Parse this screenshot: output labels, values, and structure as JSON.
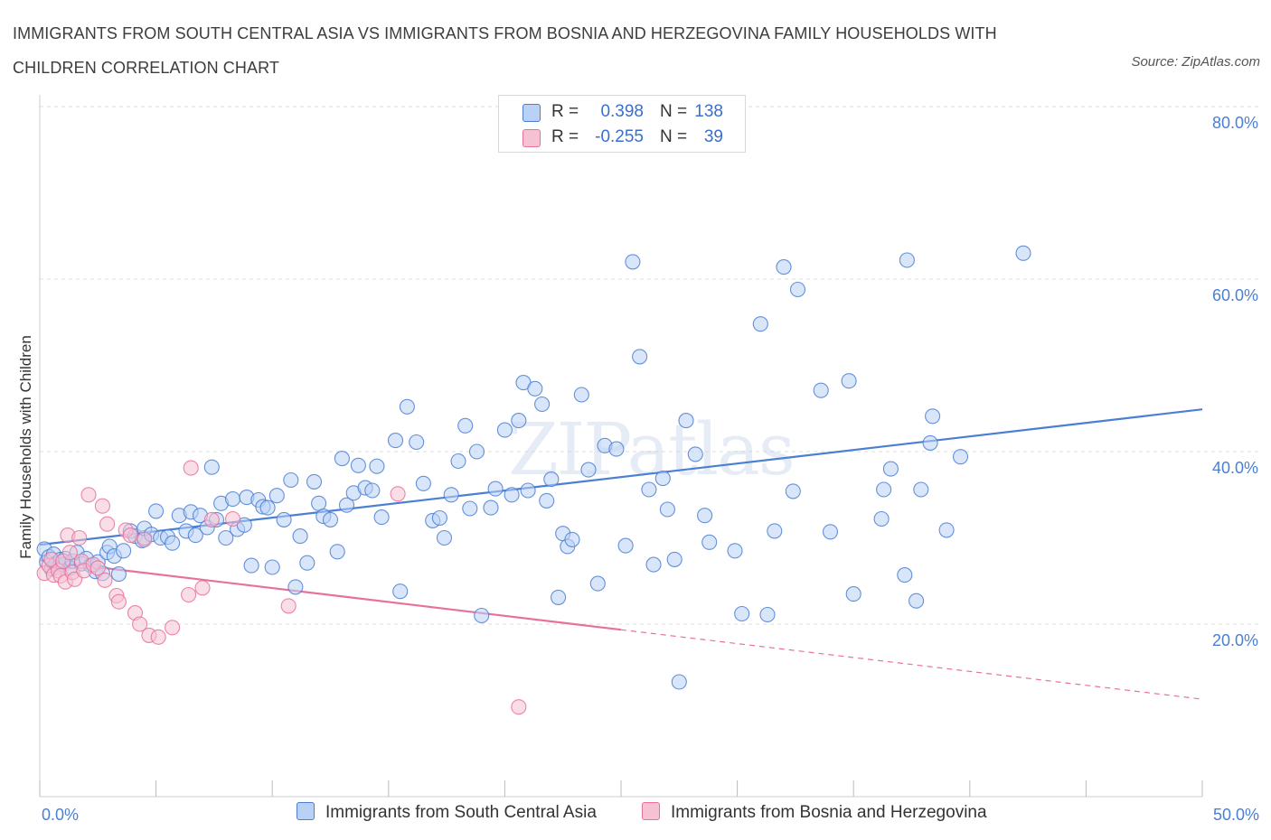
{
  "title": "IMMIGRANTS FROM SOUTH CENTRAL ASIA VS IMMIGRANTS FROM BOSNIA AND HERZEGOVINA FAMILY HOUSEHOLDS WITH CHILDREN CORRELATION CHART",
  "source": "Source: ZipAtlas.com",
  "watermark": "ZIPatlas",
  "colors": {
    "blue": "#4a7fd4",
    "blue_fill": "#b9d1f5",
    "pink": "#e8719b",
    "pink_fill": "#f6c2d3",
    "grid": "#dddddd"
  },
  "legend": {
    "series1": {
      "r_label": "R =",
      "r_value": "0.398",
      "n_label": "N =",
      "n_value": "138"
    },
    "series2": {
      "r_label": "R =",
      "r_value": "-0.255",
      "n_label": "N =",
      "n_value": "39"
    }
  },
  "chart_data": {
    "type": "scatter",
    "title": "Immigrants from South Central Asia vs Immigrants from Bosnia and Herzegovina Family Households with Children Correlation Chart",
    "xlabel": "",
    "ylabel": "Family Households with Children",
    "xlim": [
      0,
      50
    ],
    "ylim": [
      0,
      82
    ],
    "x_tick_labels": [
      "0.0%",
      "50.0%"
    ],
    "y_ticks": [
      20,
      40,
      60,
      80
    ],
    "y_tick_labels": [
      "20.0%",
      "40.0%",
      "60.0%",
      "80.0%"
    ],
    "grid": true,
    "series": [
      {
        "name": "Immigrants from South Central Asia",
        "color": "#4a7fd4",
        "trend": {
          "x": [
            0,
            50
          ],
          "y": [
            29.2,
            44.9
          ],
          "dashed_from": null
        },
        "points": [
          [
            0.2,
            28.7
          ],
          [
            0.3,
            27.2
          ],
          [
            0.4,
            27.8
          ],
          [
            0.5,
            26.4
          ],
          [
            0.6,
            28.1
          ],
          [
            0.7,
            27.0
          ],
          [
            0.8,
            26.6
          ],
          [
            0.9,
            27.5
          ],
          [
            1.0,
            26.9
          ],
          [
            1.1,
            27.6
          ],
          [
            1.3,
            26.5
          ],
          [
            1.4,
            27.3
          ],
          [
            1.6,
            28.3
          ],
          [
            1.8,
            27.0
          ],
          [
            2.0,
            27.6
          ],
          [
            2.2,
            26.8
          ],
          [
            2.4,
            26.1
          ],
          [
            2.5,
            27.2
          ],
          [
            2.7,
            25.9
          ],
          [
            2.9,
            28.3
          ],
          [
            3.0,
            29.0
          ],
          [
            3.2,
            27.9
          ],
          [
            3.4,
            25.8
          ],
          [
            3.6,
            28.5
          ],
          [
            3.9,
            30.8
          ],
          [
            4.1,
            30.2
          ],
          [
            4.4,
            29.7
          ],
          [
            4.5,
            30.0
          ],
          [
            4.5,
            31.1
          ],
          [
            4.8,
            30.4
          ],
          [
            5.0,
            33.1
          ],
          [
            5.2,
            30.0
          ],
          [
            5.5,
            30.1
          ],
          [
            5.7,
            29.4
          ],
          [
            6.0,
            32.6
          ],
          [
            6.3,
            30.8
          ],
          [
            6.5,
            33.0
          ],
          [
            6.7,
            30.3
          ],
          [
            6.9,
            32.6
          ],
          [
            7.2,
            31.2
          ],
          [
            7.4,
            38.2
          ],
          [
            7.6,
            32.1
          ],
          [
            7.8,
            34.0
          ],
          [
            8.0,
            30.0
          ],
          [
            8.3,
            34.5
          ],
          [
            8.5,
            31.0
          ],
          [
            8.8,
            31.5
          ],
          [
            8.9,
            34.7
          ],
          [
            9.1,
            26.8
          ],
          [
            9.4,
            34.4
          ],
          [
            9.6,
            33.6
          ],
          [
            9.8,
            33.5
          ],
          [
            10.0,
            26.6
          ],
          [
            10.2,
            34.9
          ],
          [
            10.5,
            32.1
          ],
          [
            10.8,
            36.7
          ],
          [
            11.0,
            24.3
          ],
          [
            11.2,
            30.2
          ],
          [
            11.5,
            27.1
          ],
          [
            11.8,
            36.5
          ],
          [
            12.0,
            34.0
          ],
          [
            12.2,
            32.5
          ],
          [
            12.5,
            32.1
          ],
          [
            12.8,
            28.4
          ],
          [
            13.0,
            39.2
          ],
          [
            13.2,
            33.8
          ],
          [
            13.5,
            35.2
          ],
          [
            13.7,
            38.4
          ],
          [
            14.0,
            35.8
          ],
          [
            14.3,
            35.5
          ],
          [
            14.5,
            38.3
          ],
          [
            14.7,
            32.4
          ],
          [
            15.3,
            41.3
          ],
          [
            15.5,
            23.8
          ],
          [
            15.8,
            45.2
          ],
          [
            16.2,
            41.1
          ],
          [
            16.5,
            36.3
          ],
          [
            16.9,
            32.0
          ],
          [
            17.2,
            32.3
          ],
          [
            17.4,
            30.0
          ],
          [
            17.7,
            35.0
          ],
          [
            18.0,
            38.9
          ],
          [
            18.3,
            43.0
          ],
          [
            18.5,
            33.4
          ],
          [
            18.8,
            40.0
          ],
          [
            19.0,
            21.0
          ],
          [
            19.4,
            33.5
          ],
          [
            19.6,
            35.7
          ],
          [
            20.0,
            42.5
          ],
          [
            20.3,
            35.0
          ],
          [
            20.6,
            43.6
          ],
          [
            20.8,
            48.0
          ],
          [
            21.0,
            35.5
          ],
          [
            21.3,
            47.3
          ],
          [
            21.6,
            45.5
          ],
          [
            21.8,
            34.3
          ],
          [
            22.0,
            36.8
          ],
          [
            22.3,
            23.1
          ],
          [
            22.5,
            30.5
          ],
          [
            22.7,
            29.0
          ],
          [
            22.9,
            29.8
          ],
          [
            23.3,
            46.6
          ],
          [
            23.6,
            37.9
          ],
          [
            24.0,
            24.7
          ],
          [
            24.3,
            40.7
          ],
          [
            24.8,
            40.3
          ],
          [
            25.2,
            29.1
          ],
          [
            25.5,
            62.0
          ],
          [
            25.8,
            51.0
          ],
          [
            26.2,
            35.6
          ],
          [
            26.4,
            26.9
          ],
          [
            26.8,
            36.9
          ],
          [
            27.0,
            33.3
          ],
          [
            27.3,
            27.5
          ],
          [
            27.5,
            13.3
          ],
          [
            27.8,
            43.6
          ],
          [
            28.2,
            39.7
          ],
          [
            28.6,
            32.6
          ],
          [
            28.8,
            29.5
          ],
          [
            29.9,
            28.5
          ],
          [
            30.2,
            21.2
          ],
          [
            31.0,
            54.8
          ],
          [
            31.3,
            21.1
          ],
          [
            31.6,
            30.8
          ],
          [
            32.0,
            61.4
          ],
          [
            32.4,
            35.4
          ],
          [
            32.6,
            58.8
          ],
          [
            33.6,
            47.1
          ],
          [
            34.0,
            30.7
          ],
          [
            34.8,
            48.2
          ],
          [
            35.0,
            23.5
          ],
          [
            36.2,
            32.2
          ],
          [
            36.3,
            35.6
          ],
          [
            36.6,
            38.0
          ],
          [
            37.2,
            25.7
          ],
          [
            37.3,
            62.2
          ],
          [
            37.7,
            22.7
          ],
          [
            37.9,
            35.6
          ],
          [
            38.3,
            41.0
          ],
          [
            38.4,
            44.1
          ],
          [
            39.0,
            30.9
          ],
          [
            39.6,
            39.4
          ],
          [
            42.3,
            63.0
          ]
        ]
      },
      {
        "name": "Immigrants from Bosnia and Herzegovina",
        "color": "#e8719b",
        "trend": {
          "x": [
            0,
            50
          ],
          "y": [
            27.4,
            11.3
          ],
          "dashed_from": 25
        },
        "points": [
          [
            0.2,
            25.9
          ],
          [
            0.4,
            26.8
          ],
          [
            0.5,
            27.5
          ],
          [
            0.6,
            25.7
          ],
          [
            0.8,
            26.2
          ],
          [
            0.9,
            25.6
          ],
          [
            1.0,
            27.3
          ],
          [
            1.1,
            24.9
          ],
          [
            1.2,
            30.3
          ],
          [
            1.3,
            28.3
          ],
          [
            1.4,
            26.0
          ],
          [
            1.5,
            25.2
          ],
          [
            1.7,
            30.0
          ],
          [
            1.8,
            27.3
          ],
          [
            1.9,
            26.2
          ],
          [
            2.1,
            35.0
          ],
          [
            2.3,
            26.9
          ],
          [
            2.5,
            26.5
          ],
          [
            2.7,
            33.7
          ],
          [
            2.8,
            25.1
          ],
          [
            2.9,
            31.6
          ],
          [
            3.3,
            23.3
          ],
          [
            3.4,
            22.6
          ],
          [
            3.7,
            30.9
          ],
          [
            3.9,
            30.3
          ],
          [
            4.1,
            21.3
          ],
          [
            4.3,
            20.0
          ],
          [
            4.5,
            29.8
          ],
          [
            4.7,
            18.7
          ],
          [
            5.1,
            18.5
          ],
          [
            5.7,
            19.6
          ],
          [
            6.4,
            23.4
          ],
          [
            6.5,
            38.1
          ],
          [
            7.0,
            24.2
          ],
          [
            7.4,
            32.1
          ],
          [
            8.3,
            32.2
          ],
          [
            10.7,
            22.1
          ],
          [
            15.4,
            35.1
          ],
          [
            20.6,
            10.4
          ]
        ]
      }
    ]
  },
  "bottom_legend": {
    "series1_label": "Immigrants from South Central Asia",
    "series2_label": "Immigrants from Bosnia and Herzegovina"
  }
}
